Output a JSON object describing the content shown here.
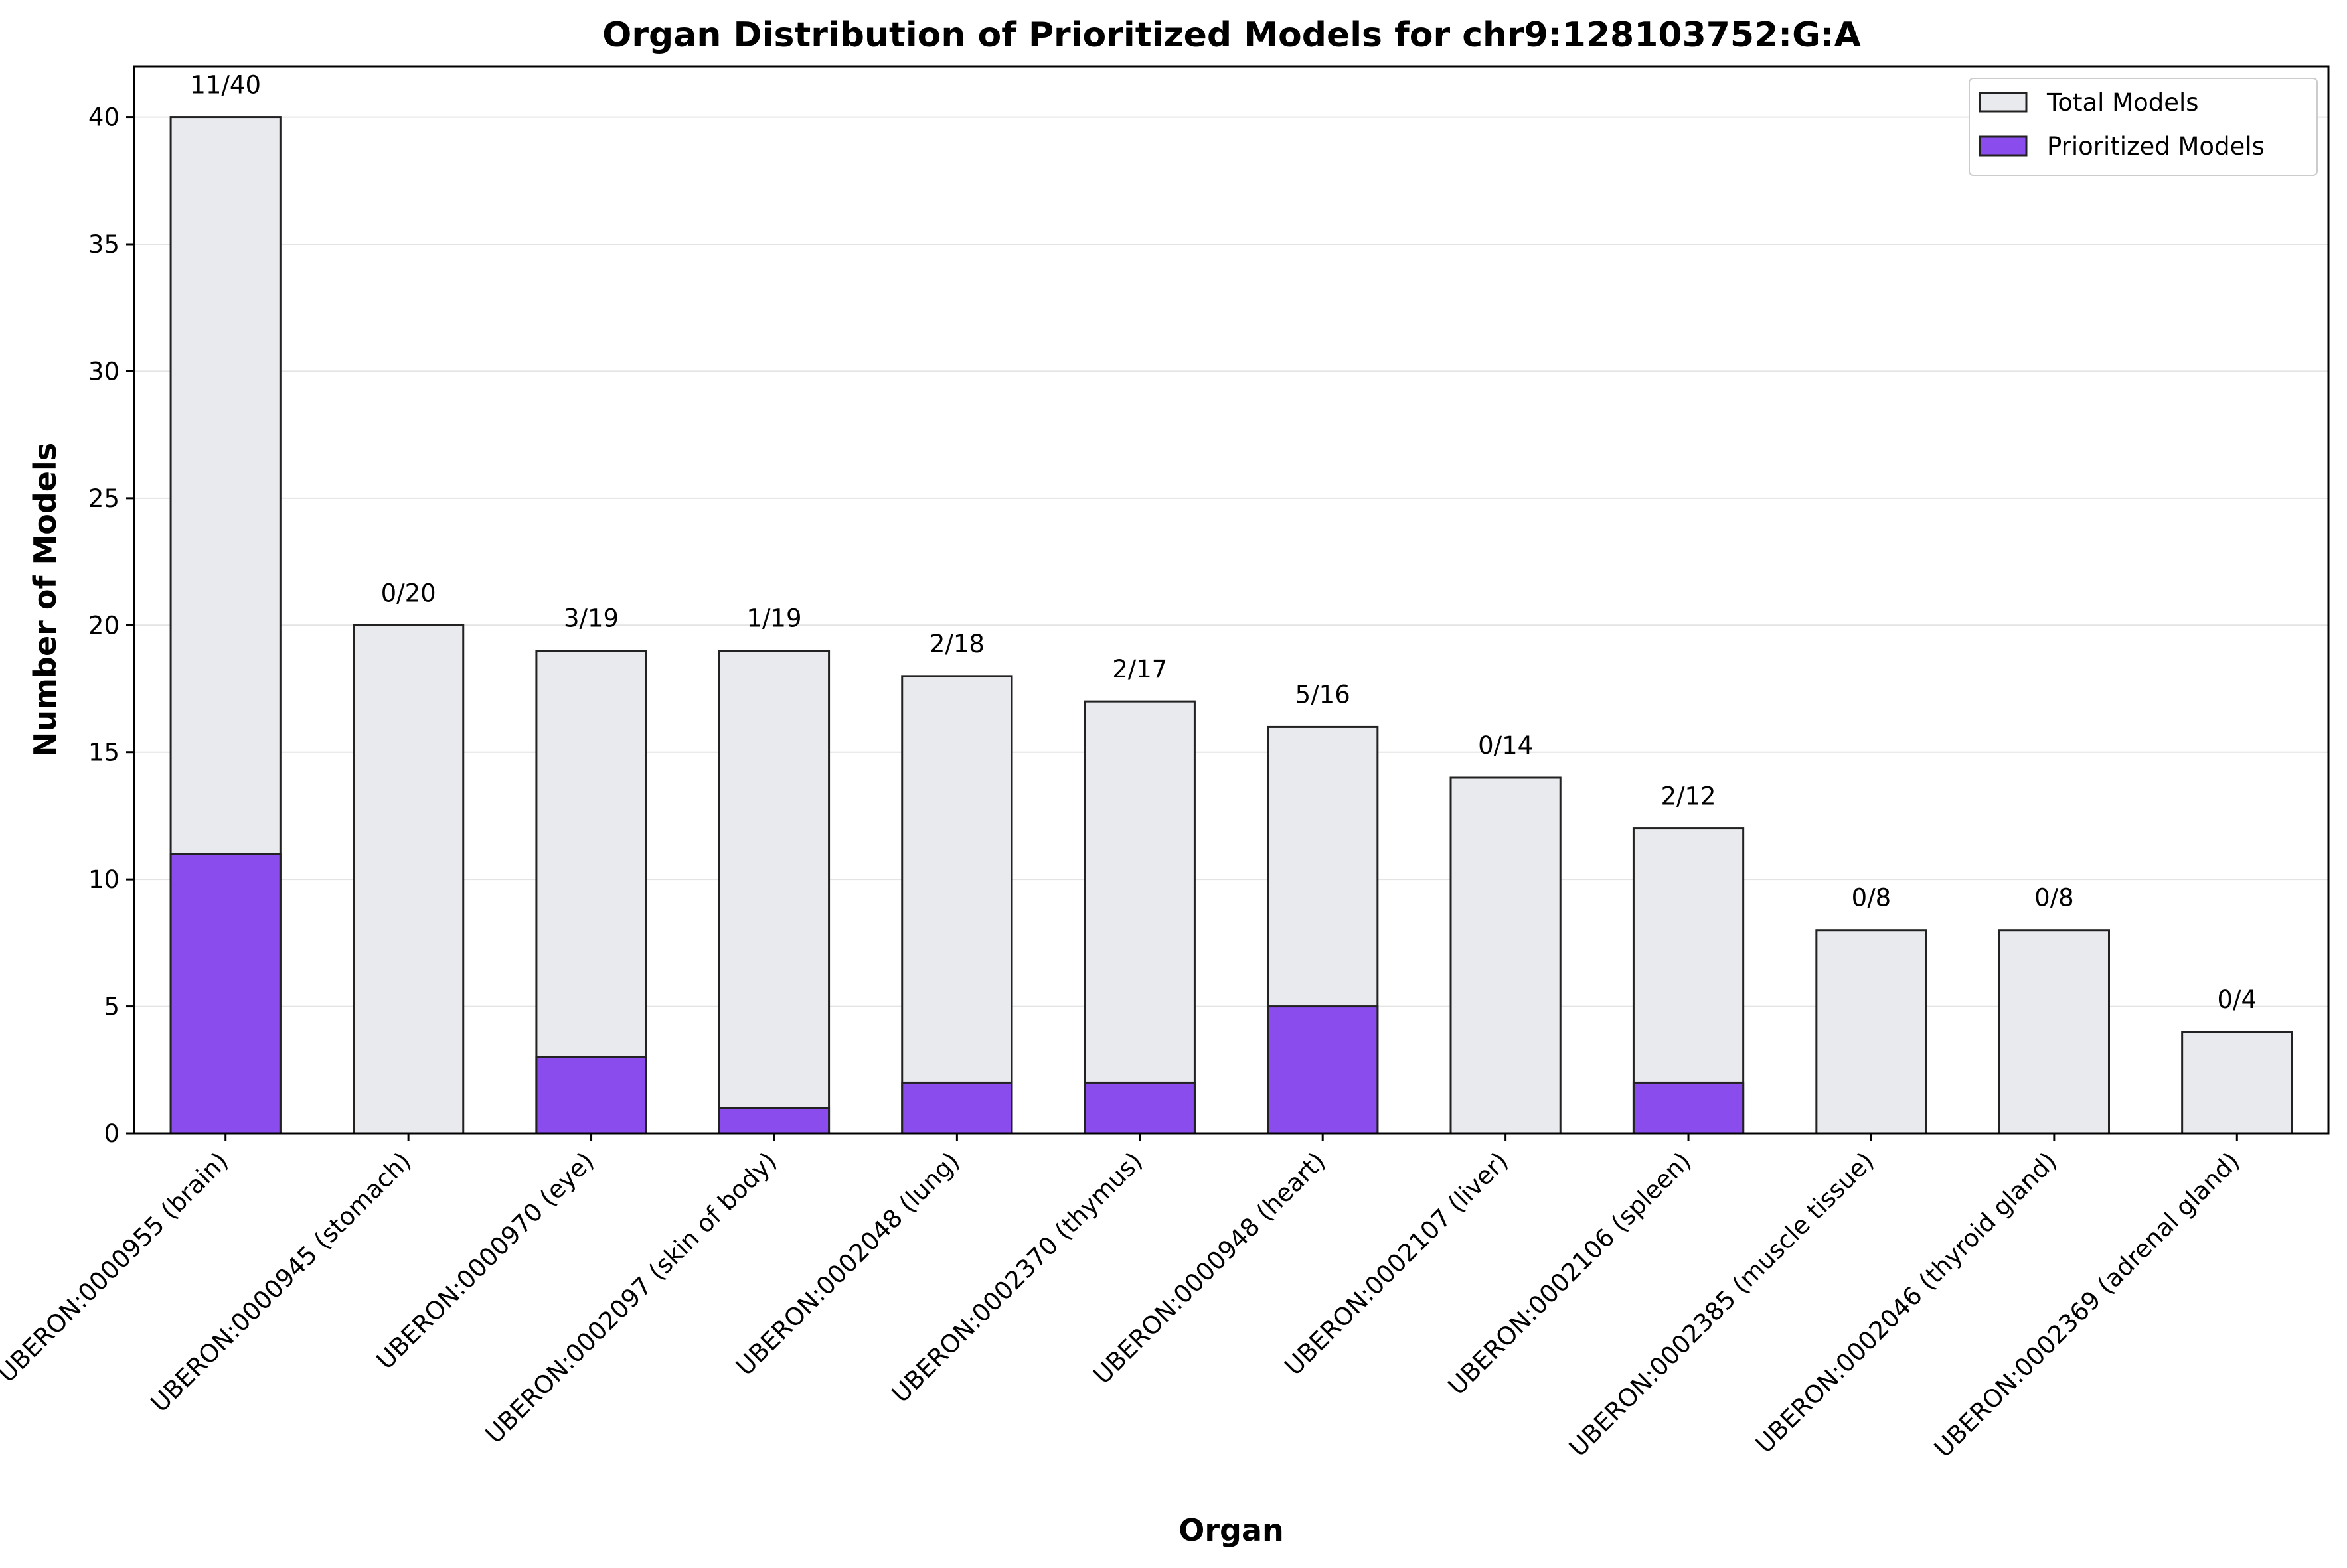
{
  "chart_data": {
    "type": "bar",
    "title": "Organ Distribution of Prioritized Models for chr9:128103752:G:A",
    "xlabel": "Organ",
    "ylabel": "Number of Models",
    "ylim": [
      0,
      42
    ],
    "yticks": [
      0,
      5,
      10,
      15,
      20,
      25,
      30,
      35,
      40
    ],
    "grid": "horizontal",
    "legend_position": "top-right",
    "categories": [
      "UBERON:0000955 (brain)",
      "UBERON:0000945 (stomach)",
      "UBERON:0000970 (eye)",
      "UBERON:0002097 (skin of body)",
      "UBERON:0002048 (lung)",
      "UBERON:0002370 (thymus)",
      "UBERON:0000948 (heart)",
      "UBERON:0002107 (liver)",
      "UBERON:0002106 (spleen)",
      "UBERON:0002385 (muscle tissue)",
      "UBERON:0002046 (thyroid gland)",
      "UBERON:0002369 (adrenal gland)"
    ],
    "series": [
      {
        "name": "Total Models",
        "color": "#e9eaee",
        "values": [
          40,
          20,
          19,
          19,
          18,
          17,
          16,
          14,
          12,
          8,
          8,
          4
        ]
      },
      {
        "name": "Prioritized Models",
        "color": "#8a4ced",
        "values": [
          11,
          0,
          3,
          1,
          2,
          2,
          5,
          0,
          2,
          0,
          0,
          0
        ]
      }
    ],
    "bar_labels": [
      "11/40",
      "0/20",
      "3/19",
      "1/19",
      "2/18",
      "2/17",
      "5/16",
      "0/14",
      "2/12",
      "0/8",
      "0/8",
      "0/4"
    ]
  }
}
